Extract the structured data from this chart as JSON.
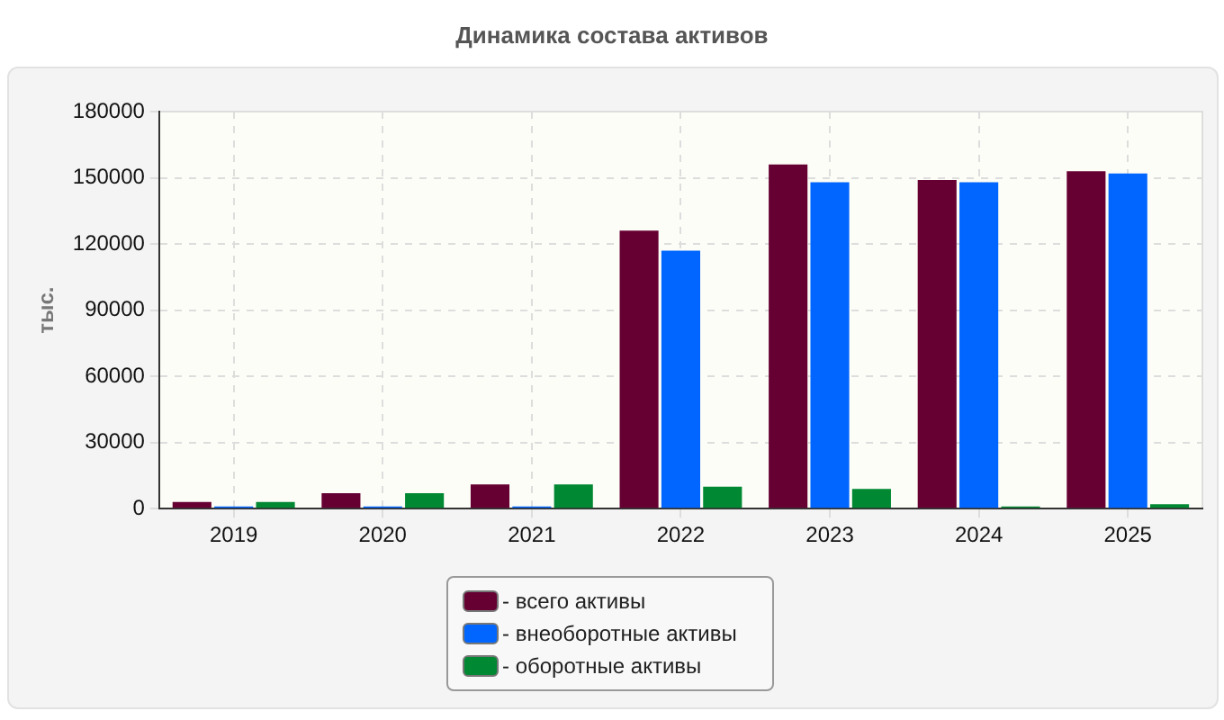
{
  "chart_data": {
    "type": "bar",
    "title": "Динамика состава активов",
    "ylabel": "тыс.",
    "categories": [
      "2019",
      "2020",
      "2021",
      "2022",
      "2023",
      "2024",
      "2025"
    ],
    "series": [
      {
        "name": "- всего активы",
        "color": "#660033",
        "values": [
          3000,
          7000,
          11000,
          126000,
          156000,
          149000,
          153000
        ]
      },
      {
        "name": "- внеоборотные активы",
        "color": "#0066ff",
        "values": [
          1000,
          1000,
          1000,
          117000,
          148000,
          148000,
          152000
        ]
      },
      {
        "name": "- оборотные активы",
        "color": "#008833",
        "values": [
          3000,
          7000,
          11000,
          10000,
          9000,
          1000,
          2000
        ]
      }
    ],
    "ylim": [
      0,
      180000
    ],
    "yticks": [
      0,
      30000,
      60000,
      90000,
      120000,
      150000,
      180000
    ],
    "grid": true,
    "legend": "bottom"
  }
}
